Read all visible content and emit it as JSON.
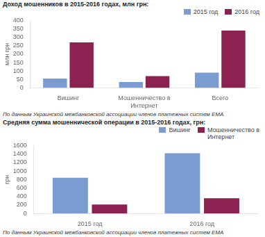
{
  "chart_data": [
    {
      "type": "bar",
      "title": "Доход мошенников в 2015-2016 годах, млн грн:",
      "categories": [
        "Вишинг",
        "Мошенничество в\nИнтернет",
        "Всего"
      ],
      "series": [
        {
          "name": "2015 год",
          "color": "#7B9CD0",
          "values": [
            55,
            35,
            90
          ]
        },
        {
          "name": "2016 год",
          "color": "#8B2252",
          "values": [
            270,
            70,
            340
          ]
        }
      ],
      "ylabel": "млн грн",
      "ylim": [
        0,
        400
      ],
      "yticks": [
        0,
        50,
        100,
        150,
        200,
        250,
        300,
        350,
        400
      ],
      "grid": false,
      "legend": "upper right",
      "annotations": [
        "По данным Украинской межбанковской ассоциации членов платежных систем ЕМА"
      ]
    },
    {
      "type": "bar",
      "title": "Средняя сумма мошеннической операции в 2015-2016 годах, грн:",
      "categories": [
        "2015 год",
        "2016 год"
      ],
      "series": [
        {
          "name": "Вишинг",
          "color": "#7B9CD0",
          "values": [
            840,
            1420
          ]
        },
        {
          "name": "Мошенничество в\nИнтернет",
          "color": "#8B2252",
          "values": [
            210,
            360
          ]
        }
      ],
      "ylabel": "грн",
      "ylim": [
        0,
        1600
      ],
      "yticks": [
        0,
        200,
        400,
        600,
        800,
        1000,
        1200,
        1400,
        1600
      ],
      "grid": false,
      "legend": "upper right",
      "annotations": [
        "По данным Украинской межбанковской ассоциации членов платежных систем ЕМА"
      ]
    }
  ]
}
